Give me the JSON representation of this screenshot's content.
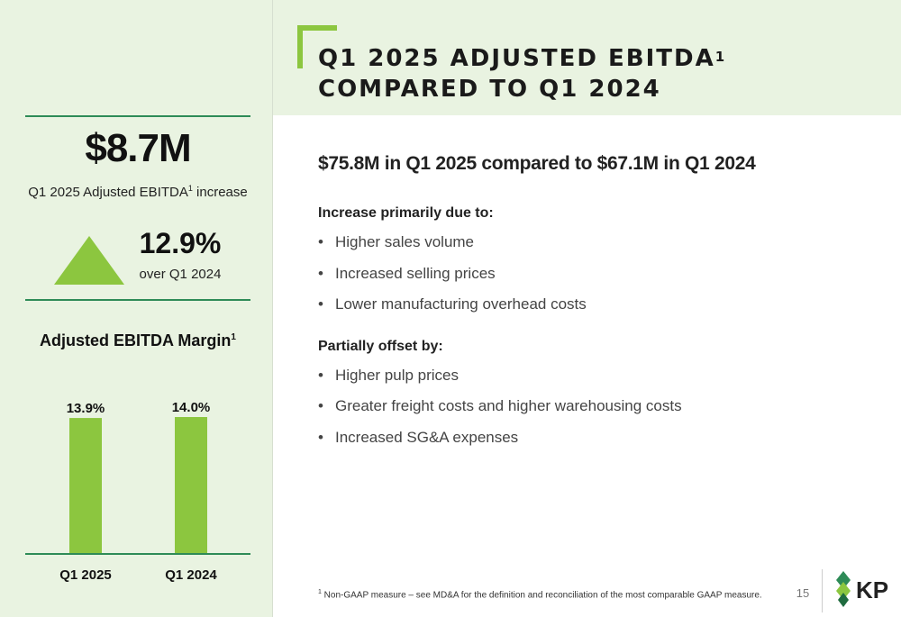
{
  "title": {
    "line1": "Q1 2025 ADJUSTED EBITDA",
    "line1_sup": "1",
    "line2": "COMPARED TO Q1 2024"
  },
  "sidebar": {
    "amount": "$8.7M",
    "amount_caption_pre": "Q1 2025 Adjusted EBITDA",
    "amount_caption_sup": "1",
    "amount_caption_post": " increase",
    "pct": "12.9%",
    "pct_caption": "over Q1 2024",
    "margin_title": "Adjusted EBITDA Margin",
    "margin_title_sup": "1"
  },
  "chart_data": {
    "type": "bar",
    "title": "Adjusted EBITDA Margin",
    "categories": [
      "Q1 2025",
      "Q1 2024"
    ],
    "values": [
      13.9,
      14.0
    ],
    "data_labels": [
      "13.9%",
      "14.0%"
    ],
    "xlabel": "",
    "ylabel": "",
    "ylim": [
      0,
      14.0
    ],
    "grid": false,
    "bar_color": "#8cc63f",
    "axis_color": "#2e8b57"
  },
  "content": {
    "subhead": "$75.8M in Q1 2025 compared to $67.1M in Q1 2024",
    "increase_label": "Increase primarily due to:",
    "increase_items": [
      "Higher sales volume",
      "Increased selling prices",
      "Lower manufacturing overhead costs"
    ],
    "offset_label": "Partially offset by:",
    "offset_items": [
      "Higher pulp prices",
      "Greater freight costs and higher warehousing costs",
      "Increased SG&A expenses"
    ],
    "bullet": "•"
  },
  "footer": {
    "footnote_sup": "1",
    "footnote": " Non-GAAP measure – see MD&A for the definition and reconciliation of the most comparable GAAP measure.",
    "page_number": "15",
    "logo_text": "KP"
  },
  "colors": {
    "accent_green": "#8cc63f",
    "dark_green": "#2e8b57",
    "panel_bg": "#e9f3e1"
  }
}
